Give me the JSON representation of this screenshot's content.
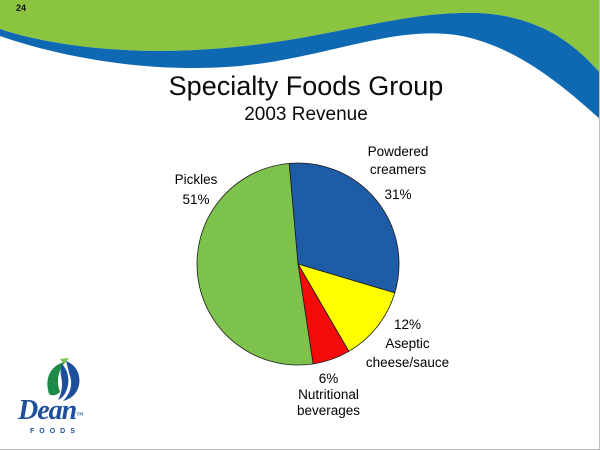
{
  "slide": {
    "page_number": "24",
    "title": "Specialty Foods Group",
    "subtitle": "2003 Revenue"
  },
  "chart_data": {
    "type": "pie",
    "title": "Specialty Foods Group",
    "subtitle": "2003 Revenue",
    "direction": "clockwise",
    "start_angle_deg": -5,
    "legend": "none",
    "slices": [
      {
        "id": "powdered-creamers",
        "label": "Powdered creamers",
        "pct": 31,
        "pct_label": "31%",
        "name_lines": [
          "Powdered",
          "creamers"
        ],
        "color": "#1E5CA8"
      },
      {
        "id": "aseptic-cheese-sauce",
        "label": "Aseptic cheese/sauce",
        "pct": 12,
        "pct_label": "12%",
        "name_lines": [
          "Aseptic",
          "cheese/sauce"
        ],
        "color": "#FFFF00"
      },
      {
        "id": "nutritional-beverages",
        "label": "Nutritional beverages",
        "pct": 6,
        "pct_label": "6%",
        "name_lines": [
          "Nutritional",
          "beverages"
        ],
        "color": "#F50A0A"
      },
      {
        "id": "pickles",
        "label": "Pickles",
        "pct": 51,
        "pct_label": "51%",
        "name_lines": [
          "Pickles"
        ],
        "color": "#7CC24B"
      }
    ]
  },
  "logo": {
    "brand": "Dean",
    "sub": "FOODS",
    "tm": "™"
  },
  "theme": {
    "swoosh_green": "#8BC43F",
    "swoosh_blue": "#0E69B2",
    "pie_outline": "#1a1a1a",
    "logo_blue": "#1D4F9C",
    "text_color": "#000000"
  }
}
